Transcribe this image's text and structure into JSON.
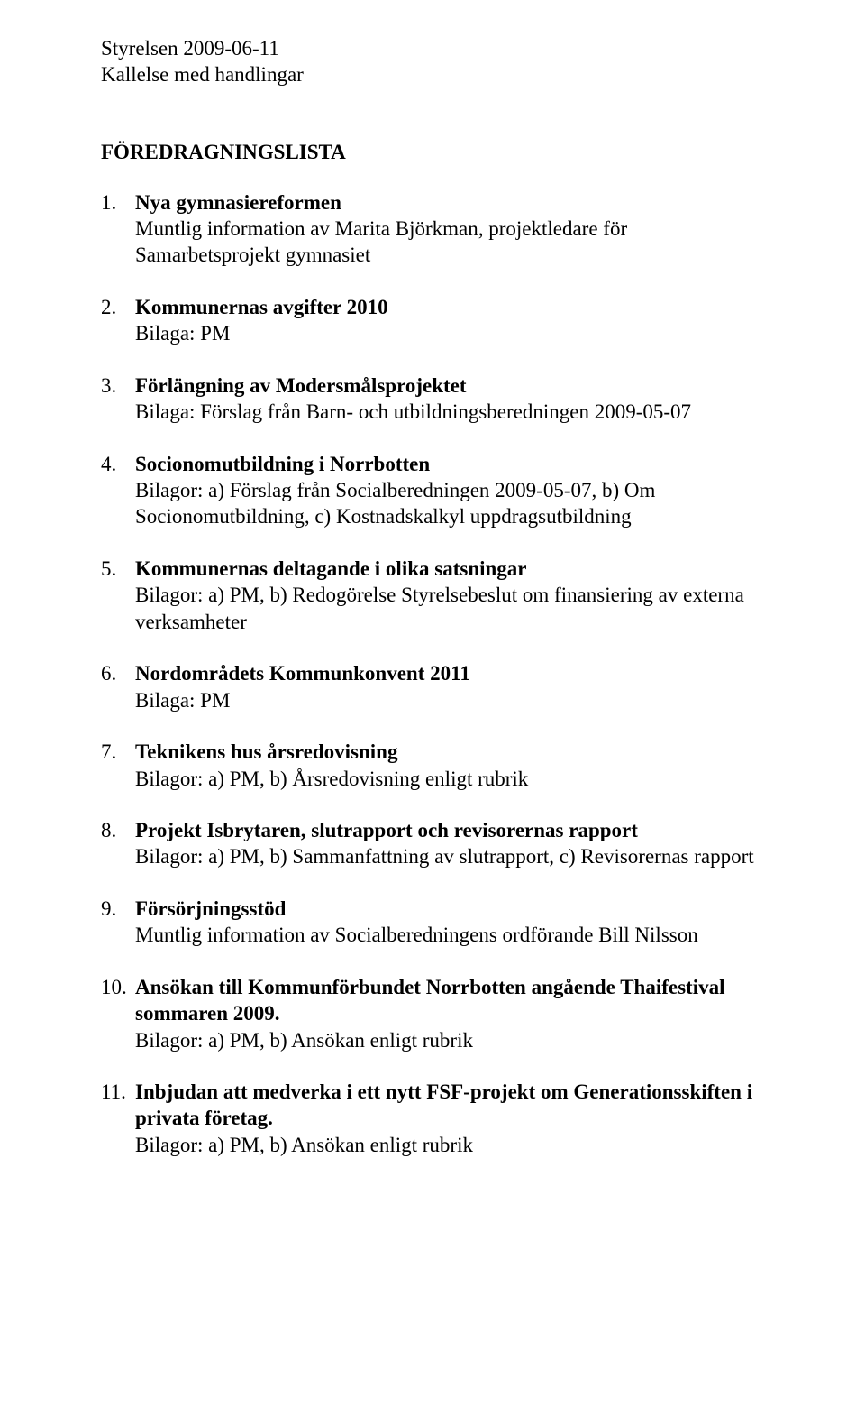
{
  "header": {
    "line1": "Styrelsen 2009-06-11",
    "line2": "Kallelse med handlingar"
  },
  "title": "FÖREDRAGNINGSLISTA",
  "items": [
    {
      "title": "Nya gymnasiereformen",
      "body": "Muntlig information av Marita Björkman, projektledare för Samarbetsprojekt gymnasiet"
    },
    {
      "title": "Kommunernas avgifter 2010",
      "body": "Bilaga: PM"
    },
    {
      "title": "Förlängning av Modersmålsprojektet",
      "body": "Bilaga: Förslag från Barn- och utbildningsberedningen 2009-05-07"
    },
    {
      "title": "Socionomutbildning i Norrbotten",
      "body": "Bilagor: a) Förslag från Socialberedningen 2009-05-07, b) Om Socionomutbildning, c) Kostnadskalkyl uppdragsutbildning"
    },
    {
      "title": "Kommunernas deltagande i olika satsningar",
      "body": "Bilagor: a) PM, b) Redogörelse Styrelsebeslut om finansiering av externa verksamheter"
    },
    {
      "title": "Nordområdets Kommunkonvent 2011",
      "body": "Bilaga: PM"
    },
    {
      "title": "Teknikens hus årsredovisning",
      "body": "Bilagor: a) PM, b) Årsredovisning enligt rubrik"
    },
    {
      "title": "Projekt Isbrytaren, slutrapport och revisorernas rapport",
      "body": "Bilagor: a) PM, b) Sammanfattning av slutrapport, c) Revisorernas rapport"
    },
    {
      "title": "Försörjningsstöd",
      "body": "Muntlig information av Socialberedningens ordförande Bill Nilsson"
    },
    {
      "title": "Ansökan till Kommunförbundet Norrbotten angående Thaifestival sommaren 2009.",
      "body": "Bilagor: a) PM, b) Ansökan enligt rubrik"
    },
    {
      "title": "Inbjudan att medverka i ett nytt FSF-projekt om Generationsskiften i privata företag.",
      "body": "Bilagor: a) PM, b) Ansökan enligt rubrik"
    }
  ]
}
